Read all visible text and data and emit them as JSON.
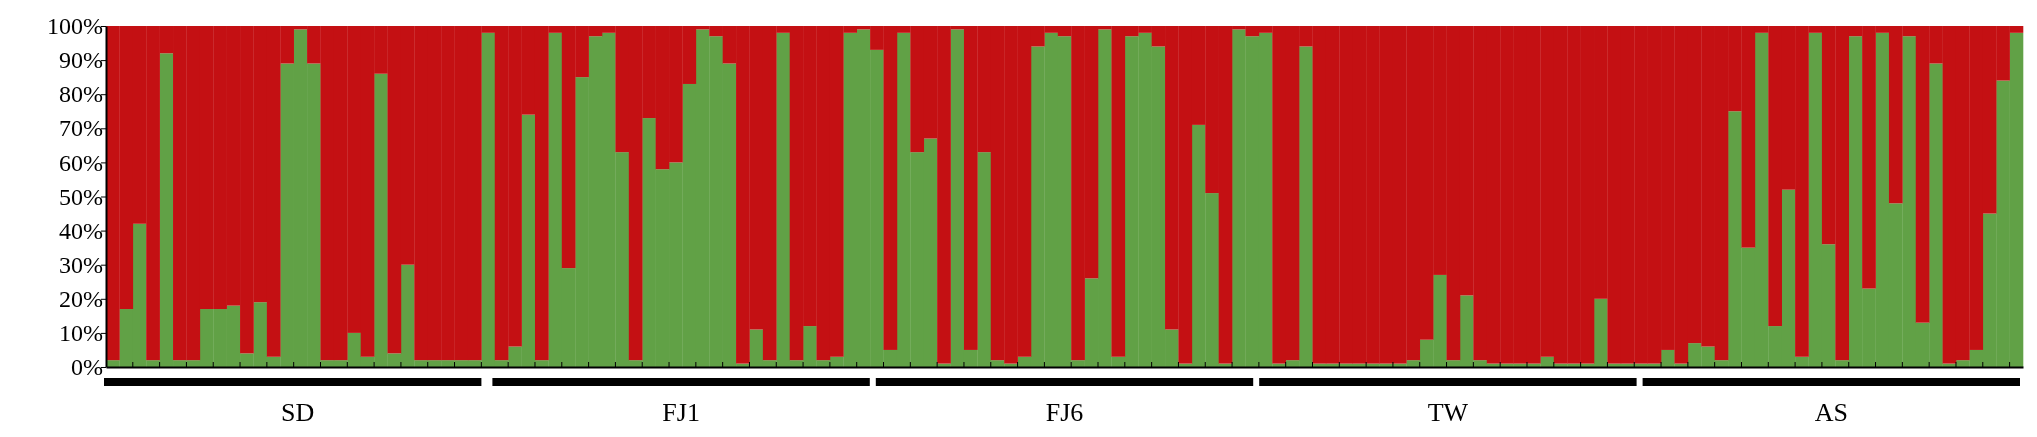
{
  "chart_data": {
    "type": "bar",
    "stacked": true,
    "categories": [
      null,
      null,
      null,
      null,
      null,
      null,
      null,
      null,
      null,
      null,
      null,
      null,
      null,
      null,
      null,
      null,
      null,
      null,
      null,
      null,
      null,
      null,
      null,
      null,
      null,
      null,
      null,
      null,
      null,
      null,
      null,
      null,
      null,
      null,
      null,
      null,
      null,
      null,
      null,
      null,
      null,
      null,
      null,
      null,
      null,
      null,
      null,
      null,
      null,
      null,
      null,
      null,
      null,
      null,
      null,
      null,
      null,
      null,
      null,
      null,
      null,
      null,
      null,
      null,
      null,
      null,
      null,
      null,
      null,
      null,
      null,
      null,
      null,
      null,
      null,
      null,
      null,
      null,
      null,
      null,
      null,
      null,
      null,
      null,
      null,
      null,
      null,
      null,
      null,
      null,
      null,
      null,
      null,
      null,
      null,
      null,
      null,
      null,
      null,
      null,
      null,
      null,
      null,
      null,
      null,
      null,
      null,
      null,
      null,
      null,
      null,
      null,
      null,
      null,
      null,
      null,
      null,
      null,
      null,
      null,
      null,
      null,
      null,
      null,
      null,
      null,
      null,
      null,
      null,
      null,
      null,
      null,
      null,
      null,
      null,
      null,
      null,
      null,
      null,
      null,
      null,
      null,
      null
    ],
    "series": [
      {
        "color": "#61a146",
        "values": [
          2,
          17,
          42,
          2,
          92,
          2,
          2,
          17,
          17,
          18,
          4,
          19,
          3,
          89,
          99,
          89,
          2,
          2,
          10,
          3,
          86,
          4,
          30,
          2,
          2,
          2,
          2,
          2,
          98,
          2,
          6,
          74,
          2,
          98,
          29,
          85,
          97,
          98,
          63,
          2,
          73,
          58,
          60,
          83,
          99,
          97,
          89,
          1,
          11,
          2,
          98,
          2,
          12,
          2,
          3,
          98,
          99,
          93,
          5,
          98,
          63,
          67,
          1,
          99,
          5,
          63,
          2,
          1,
          3,
          94,
          98,
          97,
          2,
          26,
          99,
          3,
          97,
          98,
          94,
          11,
          1,
          71,
          51,
          1,
          99,
          97,
          98,
          1,
          2,
          94,
          1,
          1,
          1,
          1,
          1,
          1,
          1,
          2,
          8,
          27,
          2,
          21,
          2,
          1,
          1,
          1,
          1,
          3,
          1,
          1,
          1,
          20,
          1,
          1,
          1,
          1,
          5,
          1,
          7,
          6,
          2,
          75,
          35,
          98,
          12,
          52,
          3,
          98,
          36,
          2,
          97,
          23,
          98,
          48,
          97,
          13,
          89,
          1,
          2,
          5,
          45,
          84,
          98
        ]
      },
      {
        "color": "#c41013",
        "values": [
          98,
          83,
          58,
          98,
          8,
          98,
          98,
          83,
          83,
          82,
          96,
          81,
          97,
          11,
          1,
          11,
          98,
          98,
          90,
          97,
          14,
          96,
          70,
          98,
          98,
          98,
          98,
          98,
          2,
          98,
          94,
          26,
          98,
          2,
          71,
          15,
          3,
          2,
          37,
          98,
          27,
          42,
          40,
          17,
          1,
          3,
          11,
          99,
          89,
          98,
          2,
          98,
          88,
          98,
          97,
          2,
          1,
          7,
          95,
          2,
          37,
          33,
          99,
          1,
          95,
          37,
          98,
          99,
          97,
          6,
          2,
          3,
          98,
          74,
          1,
          97,
          3,
          2,
          6,
          89,
          99,
          29,
          49,
          99,
          1,
          3,
          2,
          99,
          98,
          6,
          99,
          99,
          99,
          99,
          99,
          99,
          99,
          98,
          92,
          73,
          98,
          79,
          98,
          99,
          99,
          99,
          99,
          97,
          99,
          99,
          99,
          80,
          99,
          99,
          99,
          99,
          95,
          99,
          93,
          94,
          98,
          25,
          65,
          2,
          88,
          48,
          97,
          2,
          64,
          98,
          3,
          77,
          2,
          52,
          3,
          87,
          11,
          99,
          98,
          95,
          55,
          16,
          2
        ]
      }
    ],
    "ylim": [
      0,
      100
    ],
    "yticks": [
      {
        "value": 0,
        "label": "0%"
      },
      {
        "value": 10,
        "label": "10%"
      },
      {
        "value": 20,
        "label": "20%"
      },
      {
        "value": 30,
        "label": "30%"
      },
      {
        "value": 40,
        "label": "40%"
      },
      {
        "value": 50,
        "label": "50%"
      },
      {
        "value": 60,
        "label": "60%"
      },
      {
        "value": 70,
        "label": "70%"
      },
      {
        "value": 80,
        "label": "80%"
      },
      {
        "value": 90,
        "label": "90%"
      },
      {
        "value": 100,
        "label": "100%"
      }
    ],
    "annotations": [
      "SD",
      "FJ1",
      "FJ6",
      "TW",
      "AS"
    ]
  }
}
